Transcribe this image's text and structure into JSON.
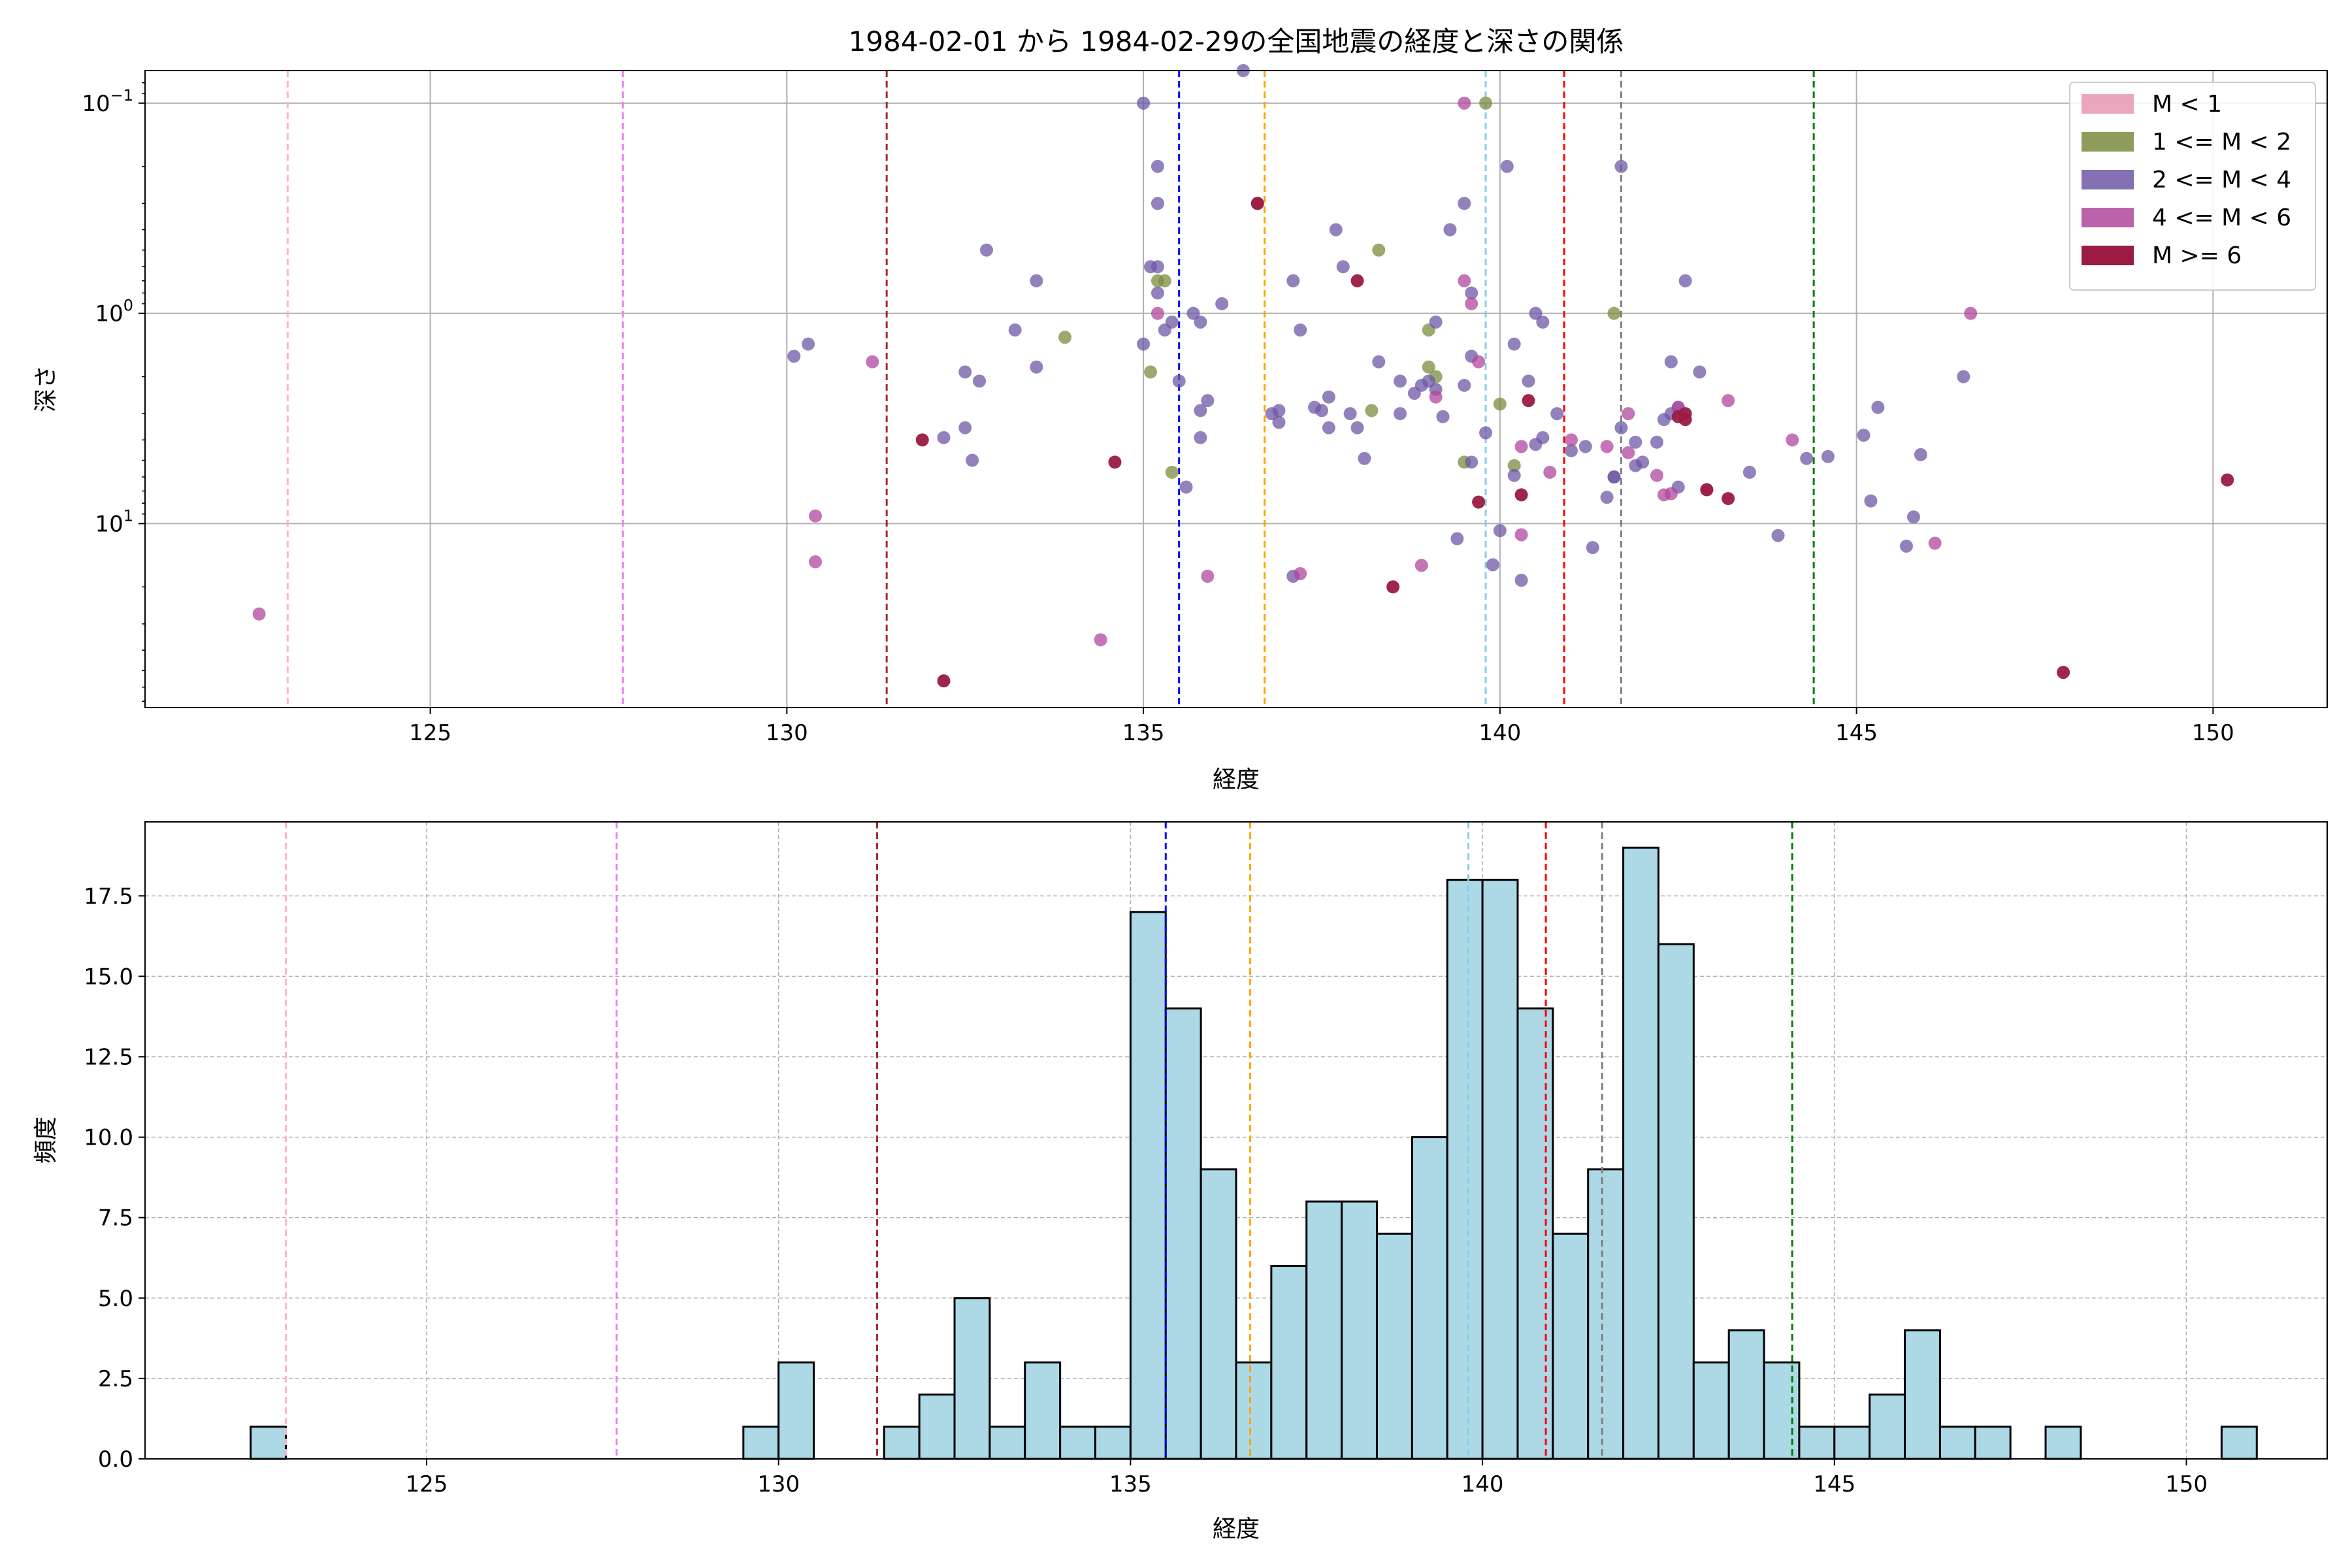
{
  "figure": {
    "title": "1984-02-01 から 1984-02-29の全国地震の経度と深さの関係"
  },
  "colors": {
    "m_lt1": "#e597b1",
    "m_1_2": "#7a8c3f",
    "m_2_4": "#6f57a6",
    "m_4_6": "#b0479c",
    "m_ge6": "#9b1b42",
    "hist_fill": "#add8e6",
    "hist_edge": "#000000"
  },
  "chart_data": [
    {
      "type": "scatter",
      "title": "1984-02-01 から 1984-02-29の全国地震の経度と深さの関係",
      "xlabel": "経度",
      "ylabel": "深さ",
      "xlim": [
        121,
        151.6
      ],
      "ylim": [
        0.07,
        75
      ],
      "yscale": "log",
      "y_inverted": true,
      "xticks": [
        125,
        130,
        135,
        140,
        145,
        150
      ],
      "yticks": [
        {
          "value": 0.1,
          "base": "10",
          "exp": "−1"
        },
        {
          "value": 1,
          "base": "10",
          "exp": "0"
        },
        {
          "value": 10,
          "base": "10",
          "exp": "1"
        }
      ],
      "grid": true,
      "legend_position": "top-right",
      "legend": [
        {
          "label": "M < 1",
          "color_key": "m_lt1"
        },
        {
          "label": "1 <= M < 2",
          "color_key": "m_1_2"
        },
        {
          "label": "2 <= M < 4",
          "color_key": "m_2_4"
        },
        {
          "label": "4 <= M < 6",
          "color_key": "m_4_6"
        },
        {
          "label": "M >= 6",
          "color_key": "m_ge6"
        }
      ],
      "vlines": [
        {
          "x": 123.0,
          "color": "#ffb6c1"
        },
        {
          "x": 127.7,
          "color": "#ee82ee"
        },
        {
          "x": 131.4,
          "color": "#a52a2a"
        },
        {
          "x": 135.5,
          "color": "#0000ff"
        },
        {
          "x": 136.7,
          "color": "#ffa500"
        },
        {
          "x": 139.8,
          "color": "#87ceeb"
        },
        {
          "x": 140.9,
          "color": "#ff0000"
        },
        {
          "x": 141.7,
          "color": "#808080"
        },
        {
          "x": 144.4,
          "color": "#008000"
        }
      ],
      "series": [
        {
          "name": "1 <= M < 2",
          "color_key": "m_1_2",
          "points": [
            [
              133.9,
              1.3
            ],
            [
              135.2,
              0.7
            ],
            [
              135.4,
              5.7
            ],
            [
              135.1,
              1.9
            ],
            [
              135.3,
              0.7
            ],
            [
              138.3,
              0.5
            ],
            [
              138.2,
              2.9
            ],
            [
              139.0,
              1.2
            ],
            [
              139.1,
              2.0
            ],
            [
              139.5,
              5.1
            ],
            [
              139.8,
              0.1
            ],
            [
              140.0,
              2.7
            ],
            [
              141.6,
              1.0
            ],
            [
              139.0,
              1.8
            ],
            [
              140.2,
              5.3
            ]
          ]
        },
        {
          "name": "2 <= M < 4",
          "color_key": "m_2_4",
          "points": [
            [
              130.1,
              1.6
            ],
            [
              130.3,
              1.4
            ],
            [
              132.2,
              3.9
            ],
            [
              132.5,
              3.5
            ],
            [
              132.6,
              5.0
            ],
            [
              132.5,
              1.9
            ],
            [
              132.7,
              2.1
            ],
            [
              132.8,
              0.5
            ],
            [
              133.2,
              1.2
            ],
            [
              133.5,
              0.7
            ],
            [
              133.5,
              1.8
            ],
            [
              135.0,
              1.4
            ],
            [
              135.1,
              0.6
            ],
            [
              135.2,
              0.6
            ],
            [
              135.2,
              0.8
            ],
            [
              135.3,
              1.2
            ],
            [
              135.4,
              1.1
            ],
            [
              135.0,
              0.1
            ],
            [
              135.2,
              0.2
            ],
            [
              135.2,
              0.3
            ],
            [
              135.5,
              2.1
            ],
            [
              135.6,
              6.7
            ],
            [
              135.7,
              1.0
            ],
            [
              135.8,
              1.1
            ],
            [
              135.8,
              2.9
            ],
            [
              135.8,
              3.9
            ],
            [
              135.9,
              2.6
            ],
            [
              136.1,
              0.9
            ],
            [
              136.4,
              0.07
            ],
            [
              136.8,
              3.0
            ],
            [
              136.9,
              2.9
            ],
            [
              137.1,
              0.7
            ],
            [
              137.2,
              1.2
            ],
            [
              137.4,
              2.8
            ],
            [
              137.5,
              2.9
            ],
            [
              137.6,
              2.5
            ],
            [
              137.6,
              3.5
            ],
            [
              137.7,
              0.4
            ],
            [
              137.9,
              3.0
            ],
            [
              137.8,
              0.6
            ],
            [
              138.0,
              3.5
            ],
            [
              138.1,
              4.9
            ],
            [
              138.3,
              1.7
            ],
            [
              138.6,
              2.1
            ],
            [
              138.6,
              3.0
            ],
            [
              138.9,
              2.2
            ],
            [
              139.0,
              2.1
            ],
            [
              139.1,
              1.1
            ],
            [
              139.1,
              2.3
            ],
            [
              139.2,
              3.1
            ],
            [
              139.3,
              0.4
            ],
            [
              139.4,
              11.8
            ],
            [
              139.5,
              0.3
            ],
            [
              139.6,
              0.8
            ],
            [
              139.5,
              2.2
            ],
            [
              139.6,
              1.6
            ],
            [
              139.8,
              3.7
            ],
            [
              139.9,
              15.7
            ],
            [
              140.0,
              10.8
            ],
            [
              140.1,
              0.2
            ],
            [
              140.2,
              1.4
            ],
            [
              140.2,
              5.9
            ],
            [
              140.3,
              18.6
            ],
            [
              140.4,
              2.1
            ],
            [
              140.5,
              1.0
            ],
            [
              140.6,
              1.1
            ],
            [
              140.6,
              3.9
            ],
            [
              140.5,
              4.2
            ],
            [
              140.8,
              3.0
            ],
            [
              141.0,
              4.5
            ],
            [
              141.2,
              4.3
            ],
            [
              141.3,
              13.0
            ],
            [
              141.5,
              7.5
            ],
            [
              141.6,
              6.0
            ],
            [
              141.6,
              6.0
            ],
            [
              141.7,
              0.2
            ],
            [
              141.7,
              3.5
            ],
            [
              141.9,
              4.1
            ],
            [
              141.9,
              5.3
            ],
            [
              142.0,
              5.1
            ],
            [
              142.2,
              4.1
            ],
            [
              142.3,
              3.2
            ],
            [
              142.4,
              3.0
            ],
            [
              142.4,
              1.7
            ],
            [
              142.5,
              2.8
            ],
            [
              142.6,
              0.7
            ],
            [
              142.8,
              1.9
            ],
            [
              142.5,
              6.7
            ],
            [
              143.5,
              5.7
            ],
            [
              143.9,
              11.4
            ],
            [
              144.3,
              4.9
            ],
            [
              144.6,
              4.8
            ],
            [
              145.1,
              3.8
            ],
            [
              145.3,
              2.8
            ],
            [
              145.2,
              7.8
            ],
            [
              145.7,
              12.8
            ],
            [
              145.8,
              9.3
            ],
            [
              145.9,
              4.7
            ],
            [
              146.5,
              2.0
            ],
            [
              137.1,
              17.8
            ],
            [
              136.9,
              3.3
            ],
            [
              139.6,
              5.1
            ],
            [
              138.8,
              2.4
            ]
          ]
        },
        {
          "name": "4 <= M < 6",
          "color_key": "m_4_6",
          "points": [
            [
              122.6,
              26.9
            ],
            [
              130.4,
              9.2
            ],
            [
              130.4,
              15.2
            ],
            [
              131.2,
              1.7
            ],
            [
              134.4,
              35.7
            ],
            [
              135.9,
              17.8
            ],
            [
              137.2,
              17.3
            ],
            [
              138.9,
              15.8
            ],
            [
              139.1,
              2.5
            ],
            [
              139.5,
              0.1
            ],
            [
              139.5,
              0.7
            ],
            [
              139.6,
              0.9
            ],
            [
              139.7,
              1.7
            ],
            [
              140.3,
              4.3
            ],
            [
              140.3,
              11.3
            ],
            [
              140.7,
              5.7
            ],
            [
              141.0,
              4.0
            ],
            [
              141.5,
              4.3
            ],
            [
              141.8,
              4.6
            ],
            [
              141.8,
              3.0
            ],
            [
              142.2,
              5.9
            ],
            [
              142.3,
              7.3
            ],
            [
              142.4,
              7.2
            ],
            [
              142.5,
              2.8
            ],
            [
              142.9,
              6.9
            ],
            [
              143.2,
              2.6
            ],
            [
              144.1,
              4.0
            ],
            [
              146.1,
              12.4
            ],
            [
              146.6,
              1.0
            ],
            [
              136.6,
              0.3
            ],
            [
              135.2,
              1.0
            ]
          ]
        },
        {
          "name": "M >= 6",
          "color_key": "m_ge6",
          "points": [
            [
              131.9,
              4.0
            ],
            [
              132.2,
              56.0
            ],
            [
              134.6,
              5.1
            ],
            [
              136.6,
              0.3
            ],
            [
              138.0,
              0.7
            ],
            [
              138.5,
              20.0
            ],
            [
              139.7,
              7.9
            ],
            [
              140.3,
              7.3
            ],
            [
              140.4,
              2.6
            ],
            [
              142.6,
              3.0
            ],
            [
              142.9,
              6.9
            ],
            [
              143.2,
              7.6
            ],
            [
              147.9,
              51.0
            ],
            [
              150.2,
              6.2
            ],
            [
              142.5,
              3.1
            ],
            [
              142.6,
              3.2
            ]
          ]
        }
      ]
    },
    {
      "type": "bar",
      "subtype": "histogram",
      "xlabel": "経度",
      "ylabel": "頻度",
      "xlim": [
        121,
        152
      ],
      "ylim": [
        0,
        19.8
      ],
      "xticks": [
        125,
        130,
        135,
        140,
        145,
        150
      ],
      "yticks": [
        {
          "value": 0,
          "label": "0.0"
        },
        {
          "value": 2.5,
          "label": "2.5"
        },
        {
          "value": 5,
          "label": "5.0"
        },
        {
          "value": 7.5,
          "label": "7.5"
        },
        {
          "value": 10,
          "label": "10.0"
        },
        {
          "value": 12.5,
          "label": "12.5"
        },
        {
          "value": 15,
          "label": "15.0"
        },
        {
          "value": 17.5,
          "label": "17.5"
        }
      ],
      "grid": true,
      "bin_start": 122.5,
      "bin_width": 0.5,
      "counts": [
        1,
        0,
        0,
        0,
        0,
        0,
        0,
        0,
        0,
        0,
        0,
        0,
        0,
        0,
        1,
        3,
        0,
        0,
        1,
        2,
        5,
        1,
        3,
        1,
        1,
        17,
        14,
        9,
        3,
        6,
        8,
        8,
        7,
        10,
        18,
        18,
        14,
        7,
        9,
        19,
        16,
        3,
        4,
        3,
        1,
        1,
        2,
        4,
        1,
        1,
        0,
        1,
        0,
        0,
        0,
        0,
        1
      ],
      "vlines": [
        {
          "x": 123.0,
          "color": "#ffb6c1"
        },
        {
          "x": 127.7,
          "color": "#ee82ee"
        },
        {
          "x": 131.4,
          "color": "#a52a2a"
        },
        {
          "x": 135.5,
          "color": "#0000ff"
        },
        {
          "x": 136.7,
          "color": "#ffa500"
        },
        {
          "x": 139.8,
          "color": "#87ceeb"
        },
        {
          "x": 140.9,
          "color": "#ff0000"
        },
        {
          "x": 141.7,
          "color": "#808080"
        },
        {
          "x": 144.4,
          "color": "#008000"
        }
      ]
    }
  ]
}
